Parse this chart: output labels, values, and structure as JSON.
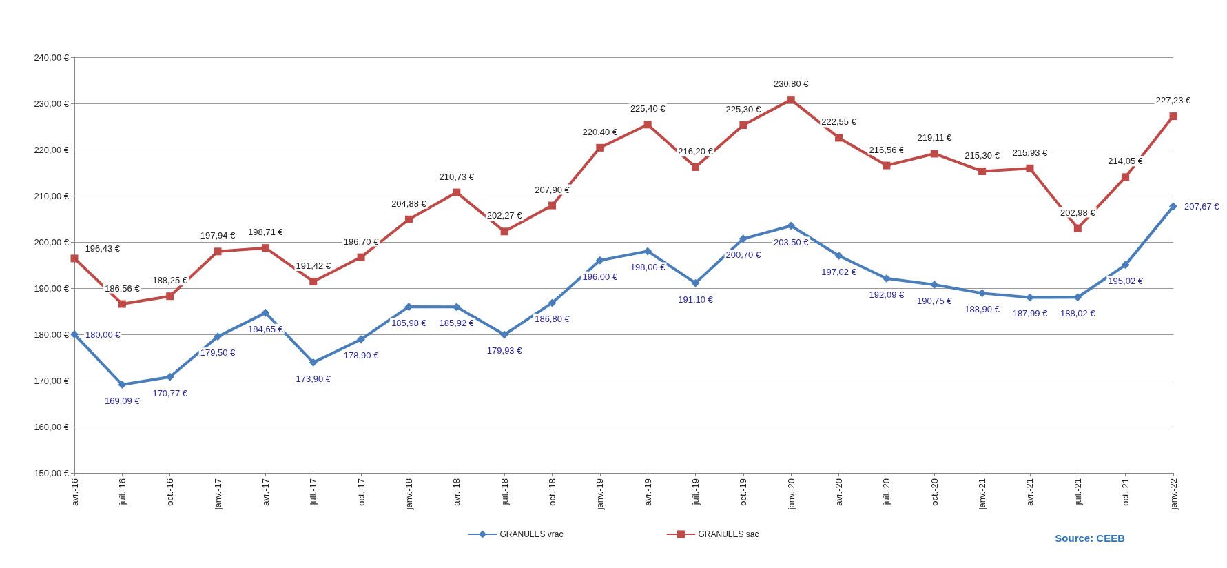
{
  "chart_data": {
    "type": "line",
    "categories": [
      "avr.-16",
      "juil.-16",
      "oct.-16",
      "janv.-17",
      "avr.-17",
      "juil.-17",
      "oct.-17",
      "janv.-18",
      "avr.-18",
      "juil.-18",
      "oct.-18",
      "janv.-19",
      "avr.-19",
      "juil.-19",
      "oct.-19",
      "janv.-20",
      "avr.-20",
      "juil.-20",
      "oct.-20",
      "janv.-21",
      "avr.-21",
      "juil.-21",
      "oct.-21",
      "janv.-22"
    ],
    "series": [
      {
        "name": "GRANULES vrac",
        "color": "#4a7ebb",
        "marker": "diamond",
        "values": [
          180.0,
          169.09,
          170.77,
          179.5,
          184.65,
          173.9,
          178.9,
          185.98,
          185.92,
          179.93,
          186.8,
          196.0,
          198.0,
          191.1,
          200.7,
          203.5,
          197.02,
          192.09,
          190.75,
          188.9,
          187.99,
          188.02,
          195.02,
          207.67
        ],
        "value_labels": [
          "180,00 €",
          "169,09 €",
          "170,77 €",
          "179,50 €",
          "184,65 €",
          "173,90 €",
          "178,90 €",
          "185,98 €",
          "185,92 €",
          "179,93 €",
          "186,80 €",
          "196,00 €",
          "198,00 €",
          "191,10 €",
          "200,70 €",
          "203,50 €",
          "197,02 €",
          "192,09 €",
          "190,75 €",
          "188,90 €",
          "187,99 €",
          "188,02 €",
          "195,02 €",
          "207,67 €"
        ]
      },
      {
        "name": "GRANULES sac",
        "color": "#be4b48",
        "marker": "square",
        "values": [
          196.43,
          186.56,
          188.25,
          197.94,
          198.71,
          191.42,
          196.7,
          204.88,
          210.73,
          202.27,
          207.9,
          220.4,
          225.4,
          216.2,
          225.3,
          230.8,
          222.55,
          216.56,
          219.11,
          215.3,
          215.93,
          202.98,
          214.05,
          227.23
        ],
        "value_labels": [
          "196,43 €",
          "186,56 €",
          "188,25 €",
          "197,94 €",
          "198,71 €",
          "191,42 €",
          "196,70 €",
          "204,88 €",
          "210,73 €",
          "202,27 €",
          "207,90 €",
          "220,40 €",
          "225,40 €",
          "216,20 €",
          "225,30 €",
          "230,80 €",
          "222,55 €",
          "216,56 €",
          "219,11 €",
          "215,30 €",
          "215,93 €",
          "202,98 €",
          "214,05 €",
          "227,23 €"
        ]
      }
    ],
    "ylim": [
      150,
      240
    ],
    "yticks": [
      {
        "value": 150,
        "label": "150,00 €"
      },
      {
        "value": 160,
        "label": "160,00 €"
      },
      {
        "value": 170,
        "label": "170,00 €"
      },
      {
        "value": 180,
        "label": "180,00 €"
      },
      {
        "value": 190,
        "label": "190,00 €"
      },
      {
        "value": 200,
        "label": "200,00 €"
      },
      {
        "value": 210,
        "label": "210,00 €"
      },
      {
        "value": 220,
        "label": "220,00 €"
      },
      {
        "value": 230,
        "label": "230,00 €"
      },
      {
        "value": 240,
        "label": "240,00 €"
      }
    ],
    "grid": "y",
    "legend": "bottom",
    "line_style": "solid",
    "annotations": [
      "Source: CEEB"
    ]
  }
}
